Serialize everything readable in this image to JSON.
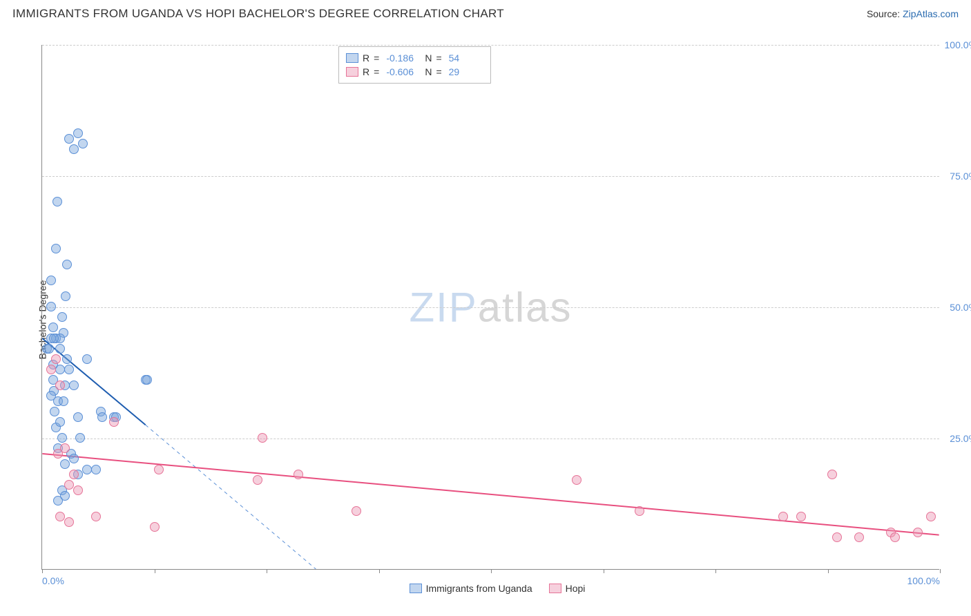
{
  "title": "IMMIGRANTS FROM UGANDA VS HOPI BACHELOR'S DEGREE CORRELATION CHART",
  "source_label": "Source: ",
  "source_name": "ZipAtlas.com",
  "y_axis_label": "Bachelor's Degree",
  "watermark_zip": "ZIP",
  "watermark_atlas": "atlas",
  "chart": {
    "type": "scatter",
    "xlim": [
      0,
      100
    ],
    "ylim": [
      0,
      100
    ],
    "y_ticks": [
      25,
      50,
      75,
      100
    ],
    "y_tick_labels": [
      "25.0%",
      "50.0%",
      "75.0%",
      "100.0%"
    ],
    "x_tick_positions": [
      0,
      12.5,
      25,
      37.5,
      50,
      62.5,
      75,
      87.5,
      100
    ],
    "x_tick_labels": {
      "0": "0.0%",
      "100": "100.0%"
    },
    "grid_color": "#cccccc",
    "axis_color": "#888888",
    "background_color": "#ffffff",
    "point_radius": 7,
    "series": [
      {
        "name": "Immigrants from Uganda",
        "color_fill": "rgba(120,165,220,0.45)",
        "color_stroke": "#5a8fd6",
        "R": "-0.186",
        "N": "54",
        "trend": {
          "x1": 0,
          "y1": 44,
          "x2": 11.5,
          "y2": 27.5,
          "color": "#1e5db0",
          "width": 2
        },
        "trend_dashed": {
          "x1": 11.5,
          "y1": 27.5,
          "x2": 30.5,
          "y2": 0,
          "color": "#5a8fd6"
        },
        "points": [
          [
            0.5,
            42
          ],
          [
            0.8,
            42
          ],
          [
            1.0,
            55
          ],
          [
            1.2,
            36
          ],
          [
            1.5,
            61
          ],
          [
            1.7,
            70
          ],
          [
            2.0,
            42
          ],
          [
            2.2,
            48
          ],
          [
            2.4,
            45
          ],
          [
            2.6,
            52
          ],
          [
            2.8,
            58
          ],
          [
            3.0,
            82
          ],
          [
            1.2,
            39
          ],
          [
            1.3,
            34
          ],
          [
            1.4,
            30
          ],
          [
            1.5,
            27
          ],
          [
            1.8,
            32
          ],
          [
            2.0,
            28
          ],
          [
            2.5,
            35
          ],
          [
            3.5,
            80
          ],
          [
            4.0,
            83
          ],
          [
            4.5,
            81
          ],
          [
            1.0,
            50
          ],
          [
            3.0,
            38
          ],
          [
            3.5,
            35
          ],
          [
            4.0,
            29
          ],
          [
            5.0,
            40
          ],
          [
            6.5,
            30
          ],
          [
            6.7,
            29
          ],
          [
            8.0,
            29
          ],
          [
            8.2,
            29
          ],
          [
            11.5,
            36
          ],
          [
            11.7,
            36
          ],
          [
            1.8,
            23
          ],
          [
            2.2,
            25
          ],
          [
            2.5,
            20
          ],
          [
            3.2,
            22
          ],
          [
            4.2,
            25
          ],
          [
            1.0,
            33
          ],
          [
            1.5,
            44
          ],
          [
            2.0,
            44
          ],
          [
            2.8,
            40
          ],
          [
            1.2,
            46
          ],
          [
            2.2,
            15
          ],
          [
            2.5,
            14
          ],
          [
            3.5,
            21
          ],
          [
            5.0,
            19
          ],
          [
            1.8,
            13
          ],
          [
            1.0,
            44
          ],
          [
            1.3,
            44
          ],
          [
            2.0,
            38
          ],
          [
            2.4,
            32
          ],
          [
            4.0,
            18
          ],
          [
            6.0,
            19
          ]
        ]
      },
      {
        "name": "Hopi",
        "color_fill": "rgba(235,150,180,0.45)",
        "color_stroke": "#e67397",
        "R": "-0.606",
        "N": "29",
        "trend": {
          "x1": 0,
          "y1": 22,
          "x2": 100,
          "y2": 6.5,
          "color": "#e84f7f",
          "width": 2
        },
        "points": [
          [
            1.0,
            38
          ],
          [
            1.5,
            40
          ],
          [
            2.0,
            35
          ],
          [
            1.8,
            22
          ],
          [
            2.5,
            23
          ],
          [
            3.0,
            16
          ],
          [
            3.5,
            18
          ],
          [
            2.0,
            10
          ],
          [
            3.0,
            9
          ],
          [
            4.0,
            15
          ],
          [
            6.0,
            10
          ],
          [
            8.0,
            28
          ],
          [
            12.5,
            8
          ],
          [
            13.0,
            19
          ],
          [
            24.5,
            25
          ],
          [
            24.0,
            17
          ],
          [
            28.5,
            18
          ],
          [
            35.0,
            11
          ],
          [
            59.5,
            17
          ],
          [
            66.5,
            11
          ],
          [
            82.5,
            10
          ],
          [
            84.5,
            10
          ],
          [
            88.0,
            18
          ],
          [
            94.5,
            7
          ],
          [
            88.5,
            6
          ],
          [
            91.0,
            6
          ],
          [
            95.0,
            6
          ],
          [
            97.5,
            7
          ],
          [
            99.0,
            10
          ]
        ]
      }
    ]
  },
  "legend_labels": {
    "r_label": "R",
    "n_label": "N",
    "equals": "="
  },
  "bottom_legend": [
    "Immigrants from Uganda",
    "Hopi"
  ]
}
